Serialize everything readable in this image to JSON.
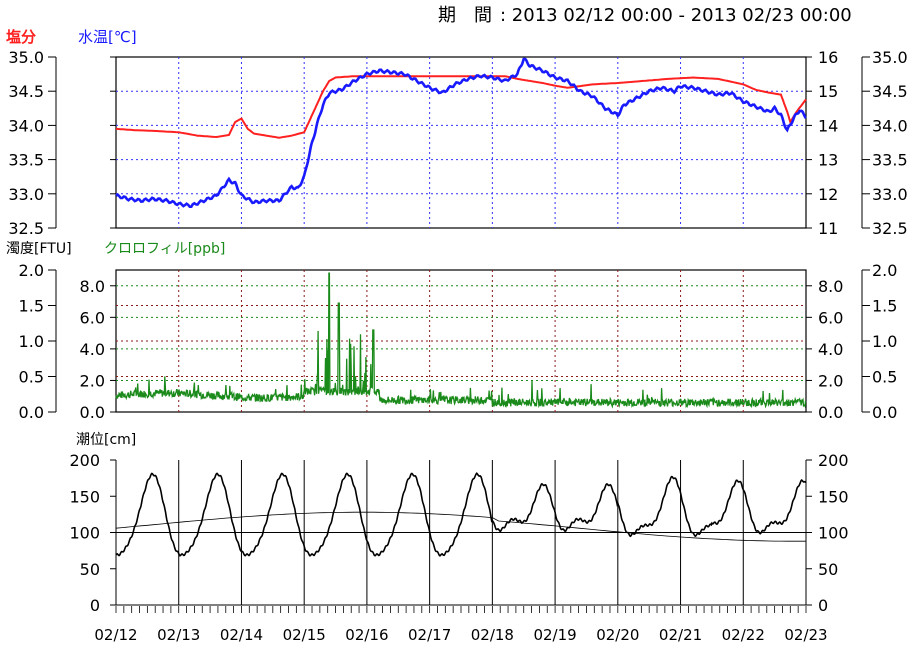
{
  "header": {
    "period_label": "期　間",
    "period_value": ": 2013 02/12 00:00 - 2013 02/23 00:00"
  },
  "colors": {
    "salinity": "#ff2020",
    "water_temp": "#1a1aff",
    "turbidity": "#555555",
    "chlorophyll": "#1a8a1a",
    "tide": "#000000"
  },
  "chart_data": [
    {
      "type": "line",
      "series": [
        {
          "name": "塩分",
          "axis": "left",
          "color": "#ff2020",
          "values": [
            [
              0,
              33.95
            ],
            [
              0.3,
              33.93
            ],
            [
              0.6,
              33.92
            ],
            [
              1.0,
              33.9
            ],
            [
              1.3,
              33.85
            ],
            [
              1.6,
              33.83
            ],
            [
              1.8,
              33.86
            ],
            [
              1.9,
              34.05
            ],
            [
              2.0,
              34.1
            ],
            [
              2.1,
              33.95
            ],
            [
              2.2,
              33.88
            ],
            [
              2.4,
              33.85
            ],
            [
              2.6,
              33.82
            ],
            [
              2.8,
              33.85
            ],
            [
              3.0,
              33.9
            ],
            [
              3.1,
              34.1
            ],
            [
              3.2,
              34.3
            ],
            [
              3.3,
              34.5
            ],
            [
              3.4,
              34.65
            ],
            [
              3.5,
              34.7
            ],
            [
              3.8,
              34.72
            ],
            [
              4.2,
              34.72
            ],
            [
              4.6,
              34.72
            ],
            [
              5.0,
              34.72
            ],
            [
              5.4,
              34.72
            ],
            [
              5.8,
              34.72
            ],
            [
              6.2,
              34.72
            ],
            [
              6.4,
              34.68
            ],
            [
              6.6,
              34.65
            ],
            [
              6.8,
              34.62
            ],
            [
              7.0,
              34.58
            ],
            [
              7.2,
              34.55
            ],
            [
              7.6,
              34.6
            ],
            [
              8.0,
              34.62
            ],
            [
              8.4,
              34.65
            ],
            [
              8.8,
              34.68
            ],
            [
              9.2,
              34.7
            ],
            [
              9.6,
              34.68
            ],
            [
              10.0,
              34.6
            ],
            [
              10.2,
              34.52
            ],
            [
              10.4,
              34.48
            ],
            [
              10.6,
              34.45
            ],
            [
              10.7,
              34.2
            ],
            [
              10.75,
              34.05
            ],
            [
              10.85,
              34.2
            ],
            [
              11.0,
              34.38
            ]
          ]
        },
        {
          "name": "水温",
          "axis": "right",
          "color": "#1a1aff",
          "values": [
            [
              0,
              11.95
            ],
            [
              0.2,
              11.85
            ],
            [
              0.4,
              11.8
            ],
            [
              0.6,
              11.85
            ],
            [
              0.8,
              11.8
            ],
            [
              1.0,
              11.7
            ],
            [
              1.2,
              11.65
            ],
            [
              1.4,
              11.8
            ],
            [
              1.6,
              11.95
            ],
            [
              1.8,
              12.4
            ],
            [
              1.9,
              12.3
            ],
            [
              2.0,
              11.95
            ],
            [
              2.2,
              11.75
            ],
            [
              2.4,
              11.8
            ],
            [
              2.6,
              11.8
            ],
            [
              2.8,
              12.2
            ],
            [
              2.9,
              12.15
            ],
            [
              3.0,
              12.5
            ],
            [
              3.1,
              13.3
            ],
            [
              3.2,
              14.0
            ],
            [
              3.3,
              14.6
            ],
            [
              3.4,
              14.95
            ],
            [
              3.6,
              15.05
            ],
            [
              3.8,
              15.3
            ],
            [
              4.0,
              15.5
            ],
            [
              4.2,
              15.6
            ],
            [
              4.4,
              15.55
            ],
            [
              4.6,
              15.5
            ],
            [
              4.8,
              15.3
            ],
            [
              5.0,
              15.1
            ],
            [
              5.2,
              14.95
            ],
            [
              5.4,
              15.2
            ],
            [
              5.6,
              15.35
            ],
            [
              5.8,
              15.45
            ],
            [
              6.0,
              15.4
            ],
            [
              6.2,
              15.3
            ],
            [
              6.4,
              15.5
            ],
            [
              6.5,
              15.95
            ],
            [
              6.6,
              15.75
            ],
            [
              6.8,
              15.6
            ],
            [
              7.0,
              15.4
            ],
            [
              7.2,
              15.3
            ],
            [
              7.4,
              15.0
            ],
            [
              7.6,
              14.85
            ],
            [
              7.8,
              14.5
            ],
            [
              8.0,
              14.3
            ],
            [
              8.1,
              14.6
            ],
            [
              8.3,
              14.8
            ],
            [
              8.5,
              15.0
            ],
            [
              8.7,
              15.1
            ],
            [
              8.9,
              15.0
            ],
            [
              9.0,
              15.15
            ],
            [
              9.2,
              15.1
            ],
            [
              9.4,
              15.0
            ],
            [
              9.6,
              14.9
            ],
            [
              9.8,
              14.95
            ],
            [
              10.0,
              14.7
            ],
            [
              10.2,
              14.55
            ],
            [
              10.4,
              14.4
            ],
            [
              10.5,
              14.5
            ],
            [
              10.6,
              14.3
            ],
            [
              10.7,
              13.85
            ],
            [
              10.8,
              14.2
            ],
            [
              10.9,
              14.45
            ],
            [
              11.0,
              14.25
            ]
          ]
        }
      ],
      "x_ticks": [
        "02/12",
        "02/13",
        "02/14",
        "02/15",
        "02/16",
        "02/17",
        "02/18",
        "02/19",
        "02/20",
        "02/21",
        "02/22",
        "02/23"
      ],
      "left_label": "塩分",
      "right_label_top": "水温[℃]",
      "left_ticks": [
        "35.0",
        "34.5",
        "34.0",
        "33.5",
        "33.0",
        "32.5"
      ],
      "right_ticks": [
        "16",
        "15",
        "14",
        "13",
        "12",
        "11"
      ],
      "left_range": [
        32.5,
        35.0
      ],
      "right_range": [
        11,
        16
      ]
    },
    {
      "type": "line",
      "series": [
        {
          "name": "クロロフィル",
          "axis": "left_inner",
          "color": "#1a8a1a",
          "description": "noisy baseline ~1.0 with spikes near 02/15-02/16"
        }
      ],
      "left_label": "濁度[FTU]",
      "right_label_top": "クロロフィル[ppb]",
      "left_ticks": [
        "2.0",
        "1.5",
        "1.0",
        "0.5",
        "0.0"
      ],
      "inner_ticks": [
        "8.0",
        "6.0",
        "4.0",
        "2.0",
        "0.0"
      ],
      "right_ticks_inner": [
        "8.0",
        "6.0",
        "4.0",
        "2.0",
        "0.0"
      ],
      "right_ticks": [
        "2.0",
        "1.5",
        "1.0",
        "0.5",
        "0.0"
      ],
      "left_range": [
        0,
        2.0
      ],
      "inner_range": [
        0,
        9.0
      ]
    },
    {
      "type": "line",
      "series": [
        {
          "name": "潮位",
          "color": "#000000"
        }
      ],
      "left_label": "潮位[cm]",
      "left_ticks": [
        "200",
        "150",
        "100",
        "50",
        "0"
      ],
      "right_ticks": [
        "200",
        "150",
        "100",
        "50",
        "0"
      ],
      "y_range": [
        0,
        200
      ]
    }
  ]
}
